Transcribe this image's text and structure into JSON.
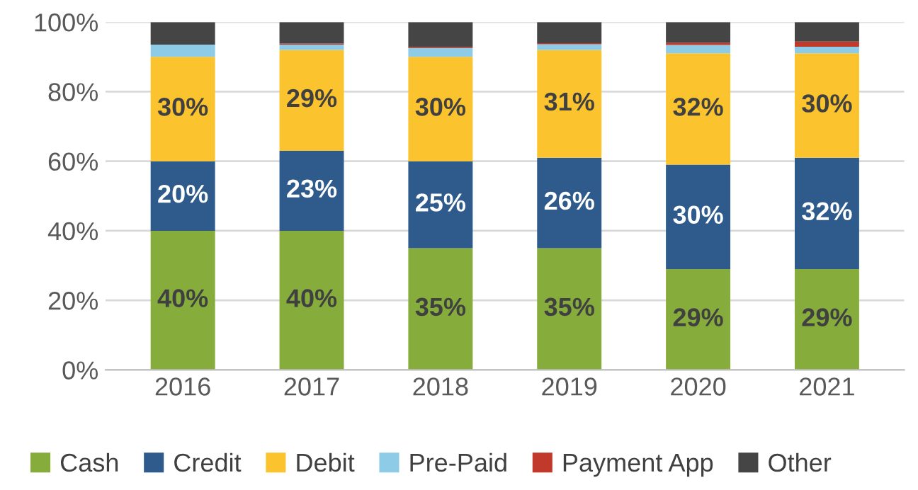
{
  "chart_data": {
    "type": "bar",
    "stacked": true,
    "categories": [
      "2016",
      "2017",
      "2018",
      "2019",
      "2020",
      "2021"
    ],
    "series": [
      {
        "name": "Cash",
        "color": "#86ac3c",
        "values": [
          40,
          40,
          35,
          35,
          29,
          29
        ],
        "value_labels": [
          "40%",
          "40%",
          "35%",
          "35%",
          "29%",
          "29%"
        ]
      },
      {
        "name": "Credit",
        "color": "#2f5b8c",
        "values": [
          20,
          23,
          25,
          26,
          30,
          32
        ],
        "value_labels": [
          "20%",
          "23%",
          "25%",
          "26%",
          "30%",
          "32%"
        ]
      },
      {
        "name": "Debit",
        "color": "#fbc32d",
        "values": [
          30,
          29,
          30,
          31,
          32,
          30
        ],
        "value_labels": [
          "30%",
          "29%",
          "30%",
          "31%",
          "32%",
          "30%"
        ]
      },
      {
        "name": "Pre-Paid",
        "color": "#8ecbe6",
        "values": [
          3.5,
          1.5,
          2.5,
          1.6,
          2.4,
          1.9
        ]
      },
      {
        "name": "Payment App",
        "color": "#c0392b",
        "values": [
          0,
          0.3,
          0.3,
          0.3,
          0.7,
          1.5
        ]
      },
      {
        "name": "Other",
        "color": "#454545",
        "values": [
          6.5,
          6.2,
          7.2,
          6.1,
          5.9,
          5.6
        ]
      }
    ],
    "ylim": [
      0,
      100
    ],
    "yticks": [
      {
        "value": 0,
        "label": "0%"
      },
      {
        "value": 20,
        "label": "20%"
      },
      {
        "value": 40,
        "label": "40%"
      },
      {
        "value": 60,
        "label": "60%"
      },
      {
        "value": 80,
        "label": "80%"
      },
      {
        "value": 100,
        "label": "100%"
      }
    ],
    "grid": "y",
    "legend": "bottom"
  }
}
